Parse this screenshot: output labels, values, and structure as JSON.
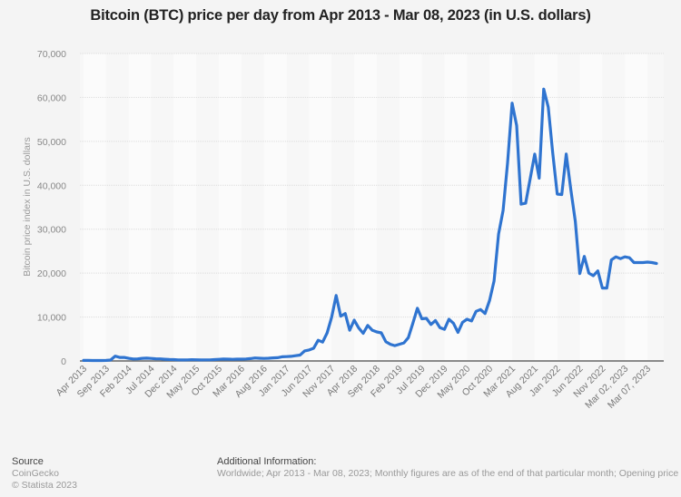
{
  "chart_data": {
    "type": "line",
    "title": "Bitcoin (BTC) price per day from Apr 2013 - Mar 08, 2023 (in U.S. dollars)",
    "xlabel": "",
    "ylabel": "Bitcoin price index in U.S. dollars",
    "ylim": [
      0,
      70000
    ],
    "yticks": [
      0,
      10000,
      20000,
      30000,
      40000,
      50000,
      60000,
      70000
    ],
    "ytick_labels": [
      "0",
      "10,000",
      "20,000",
      "30,000",
      "40,000",
      "50,000",
      "60,000",
      "70,000"
    ],
    "grid": true,
    "legend": "none",
    "line_color": "#2f74d0",
    "xtick_labels": [
      {
        "index": 0,
        "label": "Apr 2013"
      },
      {
        "index": 5,
        "label": "Sep 2013"
      },
      {
        "index": 10,
        "label": "Feb 2014"
      },
      {
        "index": 15,
        "label": "Jul 2014"
      },
      {
        "index": 20,
        "label": "Dec 2014"
      },
      {
        "index": 25,
        "label": "May 2015"
      },
      {
        "index": 30,
        "label": "Oct 2015"
      },
      {
        "index": 35,
        "label": "Mar 2016"
      },
      {
        "index": 40,
        "label": "Aug 2016"
      },
      {
        "index": 45,
        "label": "Jan 2017"
      },
      {
        "index": 50,
        "label": "Jun 2017"
      },
      {
        "index": 55,
        "label": "Nov 2017"
      },
      {
        "index": 60,
        "label": "Apr 2018"
      },
      {
        "index": 65,
        "label": "Sep 2018"
      },
      {
        "index": 70,
        "label": "Feb 2019"
      },
      {
        "index": 75,
        "label": "Jul 2019"
      },
      {
        "index": 80,
        "label": "Dec 2019"
      },
      {
        "index": 85,
        "label": "May 2020"
      },
      {
        "index": 90,
        "label": "Oct 2020"
      },
      {
        "index": 95,
        "label": "Mar 2021"
      },
      {
        "index": 100,
        "label": "Aug 2021"
      },
      {
        "index": 105,
        "label": "Jan 2022"
      },
      {
        "index": 110,
        "label": "Jun 2022"
      },
      {
        "index": 115,
        "label": "Nov 2022"
      },
      {
        "index": 120,
        "label": "Mar 02, 2023"
      },
      {
        "index": 125,
        "label": "Mar 07, 2023"
      }
    ],
    "values": [
      130,
      120,
      100,
      95,
      110,
      130,
      200,
      1100,
      800,
      800,
      600,
      450,
      480,
      600,
      630,
      580,
      500,
      470,
      390,
      330,
      320,
      240,
      230,
      240,
      280,
      270,
      230,
      250,
      240,
      320,
      380,
      430,
      420,
      380,
      410,
      420,
      450,
      530,
      680,
      620,
      580,
      610,
      700,
      750,
      960,
      1000,
      1050,
      1200,
      1350,
      2300,
      2500,
      2900,
      4700,
      4300,
      6400,
      10000,
      14900,
      10200,
      10800,
      7000,
      9300,
      7500,
      6300,
      8100,
      7000,
      6600,
      6400,
      4400,
      3800,
      3500,
      3800,
      4100,
      5300,
      8600,
      12000,
      9600,
      9700,
      8300,
      9200,
      7600,
      7200,
      9500,
      8600,
      6500,
      8800,
      9500,
      9100,
      11300,
      11700,
      10800,
      13800,
      18200,
      28900,
      34300,
      45100,
      58700,
      53600,
      35700,
      35900,
      41500,
      47100,
      41600,
      61900,
      57800,
      47400,
      38000,
      37900,
      47100,
      39100,
      31800,
      19900,
      23800,
      20000,
      19400,
      20500,
      16600,
      16600,
      23000,
      23700,
      23300,
      23700,
      23500,
      22400,
      22400,
      22400,
      22500,
      22400,
      22200
    ]
  },
  "footer": {
    "source_label": "Source",
    "source_name": "CoinGecko",
    "copyright": "© Statista 2023",
    "additional_label": "Additional Information:",
    "additional_text": "Worldwide; Apr 2013 - Mar 08, 2023; Monthly figures are as of the end of that particular month; Opening price"
  }
}
